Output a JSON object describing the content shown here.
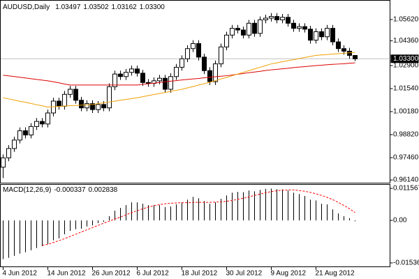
{
  "chart_data": [
    {
      "type": "candlestick",
      "title": "AUDUSD,Daily",
      "ohlc_labels": [
        "1.03497",
        "1.03502",
        "1.03162",
        "1.03300"
      ],
      "categories": [
        "4 Jun 2012",
        null,
        null,
        null,
        null,
        null,
        null,
        null,
        "14 Jun 2012",
        null,
        null,
        null,
        null,
        null,
        null,
        null,
        "26 Jun 2012",
        null,
        null,
        null,
        null,
        null,
        null,
        null,
        "6 Jul 2012",
        null,
        null,
        null,
        null,
        null,
        null,
        null,
        "18 Jul 2012",
        null,
        null,
        null,
        null,
        null,
        null,
        null,
        "30 Jul 2012",
        null,
        null,
        null,
        null,
        null,
        null,
        null,
        "9 Aug 2012",
        null,
        null,
        null,
        null,
        null,
        null,
        null,
        "21 Aug 2012",
        null,
        null,
        null,
        null,
        null,
        null,
        null
      ],
      "open": [
        0.969,
        0.9745,
        0.98,
        0.985,
        0.9905,
        0.988,
        0.993,
        0.996,
        0.9945,
        1.001,
        1.008,
        1.005,
        1.012,
        1.015,
        1.0085,
        1.004,
        1.0065,
        1.003,
        1.006,
        1.004,
        1.0165,
        1.024,
        1.0225,
        1.025,
        1.027,
        1.0245,
        1.019,
        1.0185,
        1.02,
        1.0215,
        1.015,
        1.0225,
        1.028,
        1.033,
        1.039,
        1.042,
        1.034,
        1.026,
        1.0195,
        1.03,
        1.04,
        1.047,
        1.051,
        1.05,
        1.047,
        1.054,
        1.048,
        1.056,
        1.057,
        1.058,
        1.056,
        1.0575,
        1.054,
        1.051,
        1.052,
        1.0505,
        1.044,
        1.049,
        1.046,
        1.051,
        1.043,
        1.039,
        1.0375,
        1.03497
      ],
      "high": [
        0.9765,
        0.982,
        0.987,
        0.9925,
        0.9925,
        0.995,
        0.998,
        0.998,
        1.003,
        1.01,
        1.01,
        1.014,
        1.017,
        1.017,
        1.0105,
        1.0085,
        1.0085,
        1.008,
        1.008,
        1.0185,
        1.026,
        1.026,
        1.027,
        1.029,
        1.029,
        1.0265,
        1.021,
        1.022,
        1.0235,
        1.0235,
        1.0245,
        1.03,
        1.035,
        1.041,
        1.044,
        1.044,
        1.036,
        1.028,
        1.032,
        1.042,
        1.049,
        1.053,
        1.053,
        1.052,
        1.056,
        1.056,
        1.058,
        1.059,
        1.06,
        1.06,
        1.0595,
        1.0595,
        1.056,
        1.054,
        1.054,
        1.0525,
        1.051,
        1.051,
        1.053,
        1.053,
        1.045,
        1.041,
        1.0395,
        1.03502
      ],
      "low": [
        0.9625,
        0.9725,
        0.978,
        0.983,
        0.986,
        0.986,
        0.991,
        0.9925,
        0.9925,
        0.999,
        1.003,
        1.003,
        1.01,
        1.0065,
        1.002,
        1.002,
        1.001,
        1.001,
        1.002,
        1.002,
        1.0145,
        1.0205,
        1.0205,
        1.023,
        1.0225,
        1.017,
        1.0165,
        1.0165,
        1.018,
        1.013,
        1.013,
        1.0205,
        1.026,
        1.031,
        1.037,
        1.032,
        1.024,
        1.0175,
        1.0175,
        1.028,
        1.038,
        1.045,
        1.048,
        1.045,
        1.045,
        1.046,
        1.046,
        1.054,
        1.055,
        1.054,
        1.054,
        1.052,
        1.049,
        1.049,
        1.0485,
        1.042,
        1.042,
        1.044,
        1.044,
        1.041,
        1.037,
        1.0355,
        1.033,
        1.03162
      ],
      "close": [
        0.9745,
        0.98,
        0.985,
        0.9905,
        0.988,
        0.993,
        0.996,
        0.9945,
        1.001,
        1.008,
        1.005,
        1.012,
        1.015,
        1.0085,
        1.004,
        1.0065,
        1.003,
        1.006,
        1.004,
        1.0165,
        1.024,
        1.0225,
        1.025,
        1.027,
        1.0245,
        1.019,
        1.0185,
        1.02,
        1.0215,
        1.015,
        1.0225,
        1.028,
        1.033,
        1.039,
        1.042,
        1.034,
        1.026,
        1.0195,
        1.03,
        1.04,
        1.047,
        1.051,
        1.05,
        1.047,
        1.054,
        1.048,
        1.056,
        1.057,
        1.058,
        1.056,
        1.0575,
        1.054,
        1.051,
        1.052,
        1.0505,
        1.044,
        1.049,
        1.046,
        1.051,
        1.043,
        1.039,
        1.0375,
        1.035,
        1.033
      ],
      "bull_color": "#ffffff",
      "bear_color": "#000000",
      "lines": [
        {
          "color": "#dd0000",
          "values": [
            1.0233,
            1.0229,
            1.0225,
            1.0221,
            1.0217,
            1.0212,
            1.0208,
            1.0204,
            1.02,
            1.0194,
            1.0188,
            1.0181,
            1.0175,
            1.0175,
            1.0175,
            1.0175,
            1.0175,
            1.0175,
            1.0175,
            1.0175,
            1.0175,
            1.0175,
            1.0175,
            1.0175,
            1.0175,
            1.0179,
            1.0183,
            1.0186,
            1.019,
            1.0194,
            1.0198,
            1.0201,
            1.0205,
            1.0208,
            1.0211,
            1.0214,
            1.0218,
            1.0221,
            1.0224,
            1.0227,
            1.023,
            1.0234,
            1.0239,
            1.0243,
            1.0248,
            1.0252,
            1.0256,
            1.0261,
            1.0265,
            1.0268,
            1.0271,
            1.0274,
            1.0278,
            1.0281,
            1.0284,
            1.0287,
            1.029,
            1.0292,
            1.0295,
            1.0297,
            1.0299,
            1.0301,
            1.0304,
            1.0306
          ]
        },
        {
          "color": "#f0a000",
          "values": [
            1.01,
            1.0093,
            1.0086,
            1.0079,
            1.0073,
            1.0066,
            1.0059,
            1.0052,
            1.0045,
            1.0047,
            1.0049,
            1.0051,
            1.0053,
            1.0054,
            1.0056,
            1.0058,
            1.006,
            1.0065,
            1.007,
            1.0075,
            1.008,
            1.0085,
            1.009,
            1.0095,
            1.01,
            1.0106,
            1.0113,
            1.0119,
            1.0125,
            1.0131,
            1.0138,
            1.0144,
            1.015,
            1.0158,
            1.0166,
            1.0175,
            1.0183,
            1.0191,
            1.0201,
            1.0211,
            1.022,
            1.023,
            1.024,
            1.025,
            1.026,
            1.027,
            1.028,
            1.029,
            1.03,
            1.0306,
            1.0313,
            1.0319,
            1.0325,
            1.0331,
            1.0338,
            1.0344,
            1.035,
            1.0353,
            1.0355,
            1.0358,
            1.036,
            1.0363,
            1.0365,
            1.0368
          ]
        }
      ],
      "last_price": {
        "value": 1.033,
        "label": "1.03300"
      },
      "ylim": [
        0.9602,
        1.0669
      ],
      "yticks": [
        {
          "value": 1.0562,
          "label": "1.05620"
        },
        {
          "value": 1.0436,
          "label": "1.04360"
        },
        {
          "value": 1.029,
          "label": "1.02900"
        },
        {
          "value": 1.0154,
          "label": "1.01540"
        },
        {
          "value": 1.0018,
          "label": "1.00180"
        },
        {
          "value": 0.9882,
          "label": "0.98820"
        },
        {
          "value": 0.9746,
          "label": "0.97460"
        },
        {
          "value": 0.9614,
          "label": "0.96140"
        }
      ]
    },
    {
      "type": "macd",
      "title": "MACD(12,26,9)",
      "value_labels": [
        "-0.000337",
        "0.002838"
      ],
      "macd": {
        "color": "#000000",
        "values": [
          -0.014,
          -0.0135,
          -0.0128,
          -0.012,
          -0.0115,
          -0.0108,
          -0.01,
          -0.0093,
          -0.0085,
          -0.0072,
          -0.0065,
          -0.005,
          -0.0038,
          -0.0032,
          -0.003,
          -0.0022,
          -0.0018,
          -0.001,
          -0.0005,
          0.0015,
          0.0035,
          0.0045,
          0.0055,
          0.0065,
          0.0065,
          0.006,
          0.0055,
          0.0055,
          0.0055,
          0.0048,
          0.005,
          0.0058,
          0.0065,
          0.0075,
          0.0085,
          0.008,
          0.007,
          0.006,
          0.0065,
          0.0078,
          0.009,
          0.01,
          0.0103,
          0.0102,
          0.0108,
          0.0105,
          0.011,
          0.0114,
          0.0115,
          0.0113,
          0.0112,
          0.0108,
          0.01,
          0.0095,
          0.0088,
          0.0075,
          0.0072,
          0.006,
          0.0058,
          0.004,
          0.0025,
          0.0015,
          0.0008,
          -0.000337
        ]
      },
      "signal": {
        "color": "#ff0000",
        "values": [
          null,
          null,
          null,
          null,
          null,
          null,
          null,
          -0.009,
          -0.0086,
          -0.008,
          -0.0073,
          -0.0066,
          -0.0058,
          -0.005,
          -0.0042,
          -0.0034,
          -0.0026,
          -0.0018,
          -0.001,
          -0.0003,
          0.0005,
          0.0012,
          0.002,
          0.0028,
          0.0035,
          0.0042,
          0.0048,
          0.0053,
          0.0057,
          0.006,
          0.0062,
          0.0063,
          0.0064,
          0.0064,
          0.0065,
          0.0065,
          0.0065,
          0.0065,
          0.0066,
          0.0067,
          0.0069,
          0.0072,
          0.0076,
          0.008,
          0.0085,
          0.009,
          0.0095,
          0.01,
          0.0104,
          0.0107,
          0.0109,
          0.011,
          0.011,
          0.0108,
          0.0105,
          0.0101,
          0.0096,
          0.009,
          0.0083,
          0.0075,
          0.0065,
          0.0054,
          0.0042,
          0.002838
        ]
      },
      "ylim": [
        -0.01638,
        0.01284
      ],
      "yticks": [
        0.011567,
        {
          "value": 0,
          "label": "0.00"
        },
        -0.01536
      ]
    }
  ]
}
